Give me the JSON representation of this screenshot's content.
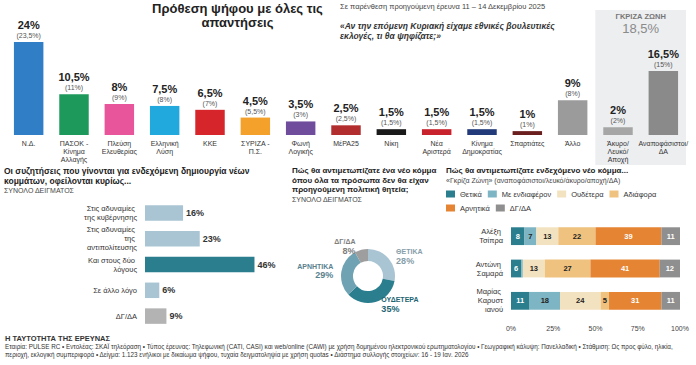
{
  "chart_data": [
    {
      "type": "bar",
      "title": "Πρόθεση ψήφου με όλες τις απαντήσεις",
      "subtitle": "Σε παρένθεση προηγούμενη έρευνα 11 – 14 Δεκεμβρίου 2025",
      "question": "«Αν την επόμενη Κυριακή είχαμε εθνικές βουλευτικές εκλογές, τι θα ψηφίζατε;»",
      "categories": [
        "Ν.Δ.",
        "ΠΑΣΟΚ - Κίνημα Αλλαγής",
        "Πλεύση Ελευθερίας",
        "Ελληνική Λύση",
        "ΚΚΕ",
        "ΣΥΡΙΖΑ - Π.Σ.",
        "Φωνή Λογικής",
        "ΜέΡΑ25",
        "Νίκη",
        "Νέα Αριστερά",
        "Κίνημα Δημοκρατίας",
        "Σπαρτιάτες",
        "Άλλο",
        "Άκυρο/Λευκό/Αποχή",
        "Αναποφάσιστοι/ΔΑ"
      ],
      "values": [
        24,
        10.5,
        8,
        7.5,
        6.5,
        4.5,
        3.5,
        2.5,
        1.5,
        1.5,
        1.5,
        1,
        9,
        2,
        16.5
      ],
      "value_labels": [
        "24%",
        "10,5%",
        "8%",
        "7,5%",
        "6,5%",
        "4,5%",
        "3,5%",
        "2,5%",
        "1,5%",
        "1,5%",
        "1,5%",
        "1%",
        "9%",
        "2%",
        "16,5%"
      ],
      "previous_values": [
        23.5,
        11,
        9,
        8,
        7,
        5.5,
        3,
        2.5,
        1.5,
        1.5,
        1.5,
        1,
        8,
        2,
        15
      ],
      "previous_value_labels": [
        "(23,5%)",
        "(11%)",
        "(9%)",
        "(8%)",
        "(7%)",
        "(5,5%)",
        "(3%)",
        "(2,5%)",
        "(1,5%)",
        "(1,5%)",
        "(1,5%)",
        "(1%)",
        "(8%)",
        "(2%)",
        "(15%)"
      ],
      "colors": [
        "#2f7ec6",
        "#1d9a5b",
        "#e8559a",
        "#21a9dd",
        "#d7262b",
        "#f4a12b",
        "#6f4d9c",
        "#b22d2d",
        "#1a1a1a",
        "#c8232c",
        "#233a7a",
        "#6b1e1e",
        "#9b9b9b",
        "#a6a6a6",
        "#8a8a8a"
      ],
      "ylim": [
        0,
        24
      ],
      "yticks": [],
      "tick_labels": "x",
      "grid": false,
      "data_labels": true,
      "annotations": [
        {
          "text": "ΓΚΡΙΖΑ ΖΩΝΗ",
          "value": 18.5,
          "value_label": "18,5%",
          "categories": [
            "Άκυρο/Λευκό/Αποχή",
            "Αναποφάσιστοι/ΔΑ"
          ]
        }
      ]
    },
    {
      "type": "bar",
      "title": "Οι συζητήσεις που γίνονται για ενδεχόμενη δημιουργία νέων κομμάτων, οφείλονται κυρίως...",
      "subtitle": "ΣΥΝΟΛΟ ΔΕΙΓΜΑΤΟΣ",
      "orientation": "horizontal",
      "categories": [
        "Στις αδυναμίες της κυβέρνησης",
        "Στις αδυναμίες της αντιπολίτευσης",
        "Και στους δύο λόγους",
        "Σε άλλο λόγο",
        "ΔΓ/ΔΑ"
      ],
      "values": [
        16,
        23,
        46,
        6,
        9
      ],
      "value_labels": [
        "16%",
        "23%",
        "46%",
        "6%",
        "9%"
      ],
      "colors": [
        "#a9c5d3",
        "#a9c5d3",
        "#2a7e8e",
        "#a9c5d3",
        "#b3b3b3"
      ],
      "xlim": [
        0,
        50
      ],
      "xticks": [],
      "tick_labels": "y",
      "grid": false,
      "data_labels": true
    },
    {
      "type": "pie",
      "title": "Πώς θα αντιμετωπίζατε ένα νέο κόμμα όπου όλα τα πρόσωπα δεν θα είχαν προηγούμενη πολιτική θητεία;",
      "subtitle": "ΣΥΝΟΛΟ ΔΕΙΓΜΑΤΟΣ",
      "categories": [
        "ΘΕΤΙΚΑ",
        "ΟΥΔΕΤΕΡΑ",
        "ΑΡΝΗΤΙΚΑ",
        "ΔΓ/ΔΑ"
      ],
      "values": [
        28,
        35,
        29,
        8
      ],
      "value_labels": [
        "28%",
        "35%",
        "29%",
        "8%"
      ],
      "colors": [
        "#a9c5d3",
        "#2a7e8e",
        "#6fa3b3",
        "#9e9e9e"
      ],
      "data_labels": true
    },
    {
      "type": "bar",
      "title": "Πώς θα αντιμετωπίζατε ενδεχόμενο νέο κόμμα...",
      "subtitle": "«Γκρίζα Ζώνη» (αναποφάσιστοι/λευκό/άκυρο/αποχή/ΔΑ)",
      "orientation": "horizontal",
      "stacked": true,
      "legend": "top",
      "categories": [
        "Αλέξη Τσίπρα",
        "Αντώνη Σαμαρά",
        "Μαρίας Καρυστιανού"
      ],
      "series": [
        {
          "name": "Θετικά",
          "color": "#2a7e8e",
          "values": [
            8,
            6,
            11
          ],
          "value_labels": [
            "8",
            "6",
            "11"
          ]
        },
        {
          "name": "Με ενδιαφέρον",
          "color": "#7db5c4",
          "values": [
            7,
            1,
            18
          ],
          "value_labels": [
            "7",
            null,
            "18"
          ]
        },
        {
          "name": "Ουδέτερα",
          "color": "#f3e2bf",
          "values": [
            13,
            13,
            24
          ],
          "value_labels": [
            "13",
            "13",
            "24"
          ]
        },
        {
          "name": "Αδιάφορα",
          "color": "#efc27f",
          "values": [
            22,
            27,
            5
          ],
          "value_labels": [
            "22",
            "27",
            "5"
          ]
        },
        {
          "name": "Αρνητικά",
          "color": "#e58534",
          "values": [
            39,
            41,
            31
          ],
          "value_labels": [
            "39",
            "41",
            "31"
          ]
        },
        {
          "name": "ΔΓ/ΔΑ",
          "color": "#8f8f8f",
          "values": [
            11,
            12,
            11
          ],
          "value_labels": [
            "11",
            "12",
            "11"
          ]
        }
      ],
      "xlim": [
        0,
        100
      ],
      "xticks": [
        {
          "value": 0,
          "label": "0%"
        },
        {
          "value": 25,
          "label": "25%"
        },
        {
          "value": 50,
          "label": "50%"
        },
        {
          "value": 75,
          "label": "75%"
        },
        {
          "value": 100,
          "label": "100%"
        }
      ],
      "grid": false,
      "data_labels": true
    }
  ],
  "footer": {
    "title": "Η ΤΑΥΤΟΤΗΤΑ ΤΗΣ ΕΡΕΥΝΑΣ",
    "text": "Εταιρία: PULSE RC • Εντολέας: ΣΚΑΪ τηλεόραση • Τύπος έρευνας: Τηλεφωνική (CATI, CASI) και web/online (CAWI) με χρήση δομημένου ηλεκτρονικού ερωτηματολογίου • Γεωγραφική κάλυψη: Πανελλαδική • Στάθμιση: Ως προς φύλο, ηλικία, περιοχή, εκλογική συμπεριφορά • Δείγμα: 1.123 ενήλικοι με δικαίωμα ψήφου, τυχαία δειγματοληψία με χρήση quotas • Διάστημα συλλογής στοιχείων: 16 - 19 Ιαν. 2026"
  }
}
